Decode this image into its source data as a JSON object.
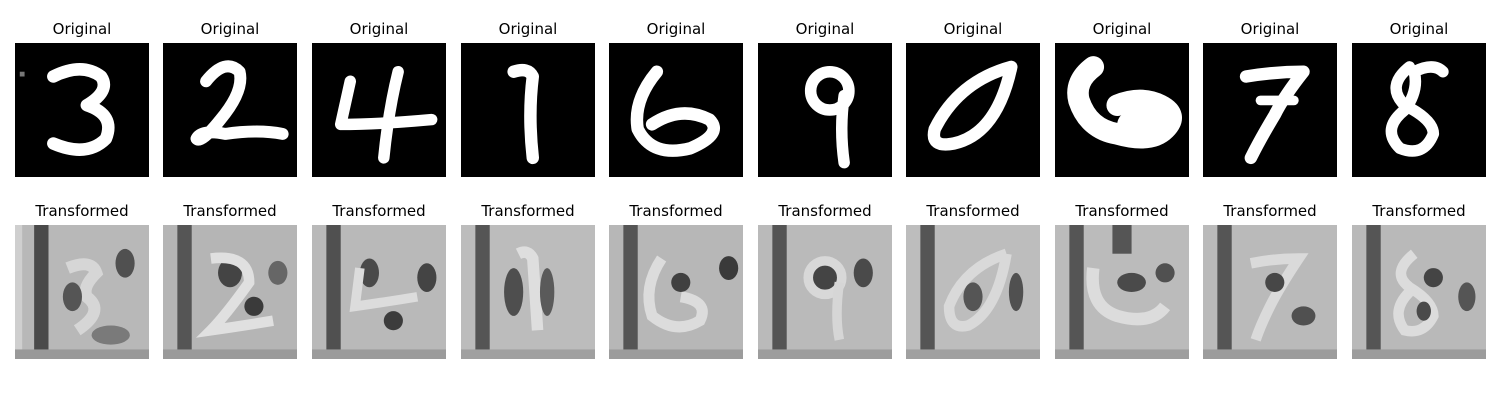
{
  "rows": [
    {
      "name": "original",
      "panels": [
        {
          "title": "Original",
          "digit": "3"
        },
        {
          "title": "Original",
          "digit": "2"
        },
        {
          "title": "Original",
          "digit": "4"
        },
        {
          "title": "Original",
          "digit": "1"
        },
        {
          "title": "Original",
          "digit": "6"
        },
        {
          "title": "Original",
          "digit": "9"
        },
        {
          "title": "Original",
          "digit": "0"
        },
        {
          "title": "Original",
          "digit": "6"
        },
        {
          "title": "Original",
          "digit": "7"
        },
        {
          "title": "Original",
          "digit": "8"
        }
      ]
    },
    {
      "name": "transformed",
      "panels": [
        {
          "title": "Transformed"
        },
        {
          "title": "Transformed"
        },
        {
          "title": "Transformed"
        },
        {
          "title": "Transformed"
        },
        {
          "title": "Transformed"
        },
        {
          "title": "Transformed"
        },
        {
          "title": "Transformed"
        },
        {
          "title": "Transformed"
        },
        {
          "title": "Transformed"
        },
        {
          "title": "Transformed"
        }
      ]
    }
  ],
  "colors": {
    "original_background": "#000000",
    "original_stroke": "#ffffff",
    "transformed_background": "#b8b8b8",
    "transformed_dark": "#3c3c3c",
    "transformed_light": "#e6e6e6"
  }
}
